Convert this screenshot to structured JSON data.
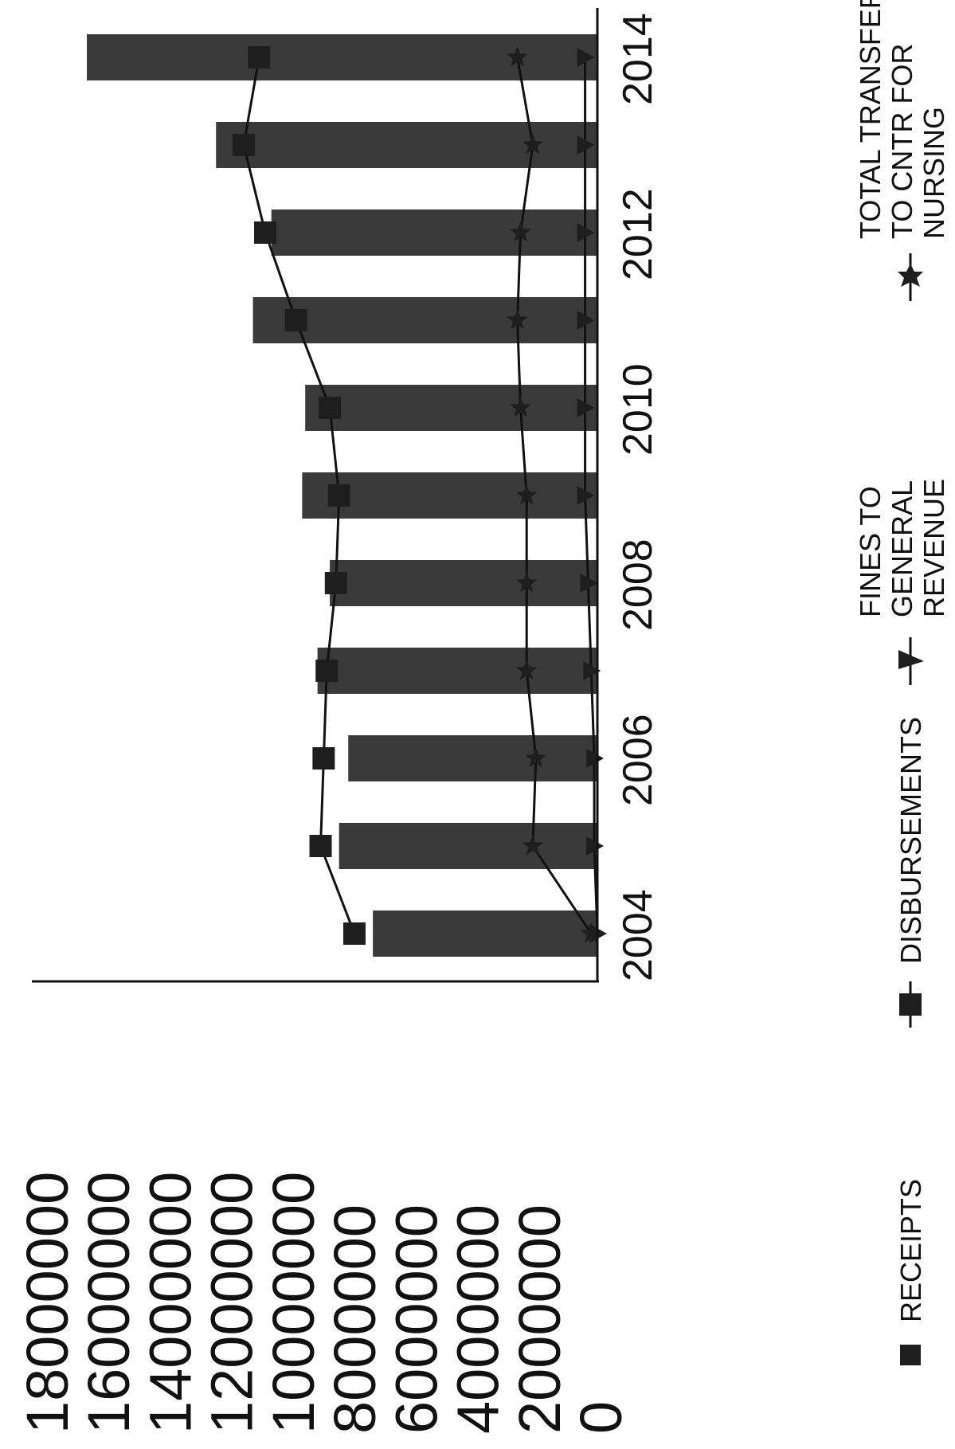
{
  "chart_data": {
    "type": "bar",
    "categories": [
      "2004",
      "2005",
      "2006",
      "2007",
      "2008",
      "2009",
      "2010",
      "2011",
      "2012",
      "2013",
      "2014"
    ],
    "x_tick_labels": [
      "2004",
      "2006",
      "2008",
      "2010",
      "2012",
      "2014"
    ],
    "y_ticks": [
      0,
      2000000,
      4000000,
      6000000,
      8000000,
      10000000,
      12000000,
      14000000,
      16000000,
      18000000
    ],
    "y_tick_labels": [
      "0",
      "2000000",
      "4000000",
      "6000000",
      "8000000",
      "10000000",
      "12000000",
      "14000000",
      "16000000",
      "18000000"
    ],
    "ylim": [
      0,
      18000000
    ],
    "orientation": "rotated-90-clockwise",
    "grid": false,
    "legend_position": "bottom",
    "series": [
      {
        "name": "RECEIPTS",
        "kind": "bar",
        "marker": "square",
        "values": [
          7300000,
          8400000,
          8100000,
          9100000,
          8700000,
          9600000,
          9500000,
          11200000,
          10600000,
          12400000,
          16600000
        ]
      },
      {
        "name": "DISBURSEMENTS",
        "kind": "line",
        "marker": "square",
        "values": [
          7900000,
          9000000,
          8900000,
          8800000,
          8500000,
          8400000,
          8700000,
          9800000,
          10800000,
          11500000,
          11000000
        ]
      },
      {
        "name": "FINES TO GENERAL REVENUE",
        "kind": "line",
        "marker": "triangle",
        "values": [
          0,
          100000,
          100000,
          200000,
          300000,
          400000,
          400000,
          400000,
          400000,
          400000,
          400000
        ]
      },
      {
        "name": "TOTAL TRANSFER TO CNTR FOR NURSING",
        "kind": "line",
        "marker": "star",
        "values": [
          200000,
          2100000,
          2000000,
          2300000,
          2300000,
          2300000,
          2500000,
          2600000,
          2500000,
          2100000,
          2600000
        ]
      }
    ],
    "legend": {
      "receipts": "RECEIPTS",
      "disbursements": "DISBURSEMENTS",
      "fines_line1": "FINES TO",
      "fines_line2": "GENERAL",
      "fines_line3": "REVENUE",
      "transfer_line1": "TOTAL TRANSFER",
      "transfer_line2": "TO CNTR FOR",
      "transfer_line3": "NURSING"
    },
    "colors": {
      "bar": "#3a3a3a",
      "line": "#111111",
      "marker": "#1e1e1e",
      "axis": "#111111"
    }
  }
}
